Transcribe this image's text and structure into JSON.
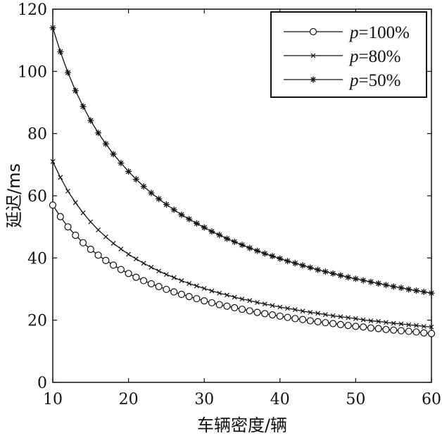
{
  "chart_data": {
    "type": "line",
    "xlabel": "车辆密度/辆",
    "ylabel": "延迟/ms",
    "xlim": [
      10,
      60
    ],
    "ylim": [
      0,
      120
    ],
    "xticks": [
      "10",
      "20",
      "30",
      "40",
      "50",
      "60"
    ],
    "yticks": [
      "0",
      "20",
      "40",
      "60",
      "80",
      "100",
      "120"
    ],
    "grid": false,
    "legend": "top-right",
    "x": [
      10,
      11,
      12,
      13,
      14,
      15,
      16,
      17,
      18,
      19,
      20,
      21,
      22,
      23,
      24,
      25,
      26,
      27,
      28,
      29,
      30,
      31,
      32,
      33,
      34,
      35,
      36,
      37,
      38,
      39,
      40,
      41,
      42,
      43,
      44,
      45,
      46,
      47,
      48,
      49,
      50,
      51,
      52,
      53,
      54,
      55,
      56,
      57,
      58,
      59,
      60
    ],
    "series": [
      {
        "name": "p=100%",
        "marker": "circle",
        "values": [
          57.0,
          53.3,
          50.0,
          47.3,
          44.9,
          42.8,
          40.9,
          39.2,
          37.7,
          36.3,
          35.0,
          33.8,
          32.7,
          31.7,
          30.8,
          29.9,
          29.1,
          28.3,
          27.6,
          26.9,
          26.2,
          25.6,
          25.0,
          24.5,
          24.0,
          23.5,
          23.0,
          22.5,
          22.1,
          21.7,
          21.3,
          20.9,
          20.5,
          20.2,
          19.8,
          19.5,
          19.2,
          18.9,
          18.6,
          18.3,
          18.0,
          17.8,
          17.5,
          17.3,
          17.0,
          16.8,
          16.6,
          16.4,
          16.2,
          15.9,
          15.7
        ]
      },
      {
        "name": "p=80%",
        "marker": "x",
        "values": [
          71.0,
          65.9,
          61.5,
          57.8,
          54.5,
          51.6,
          49.0,
          46.8,
          44.7,
          42.9,
          41.2,
          39.7,
          38.3,
          37.0,
          35.8,
          34.7,
          33.7,
          32.7,
          31.8,
          31.0,
          30.2,
          29.4,
          28.7,
          28.1,
          27.4,
          26.8,
          26.3,
          25.7,
          25.2,
          24.7,
          24.2,
          23.8,
          23.4,
          22.9,
          22.5,
          22.2,
          21.8,
          21.4,
          21.1,
          20.8,
          20.5,
          20.1,
          19.8,
          19.6,
          19.3,
          19.0,
          18.8,
          18.5,
          18.3,
          18.0,
          17.8
        ]
      },
      {
        "name": "p=50%",
        "marker": "star",
        "values": [
          114.0,
          106.3,
          99.6,
          93.8,
          88.7,
          84.2,
          80.2,
          76.7,
          73.4,
          70.5,
          67.8,
          65.3,
          63.0,
          60.9,
          59.0,
          57.2,
          55.5,
          53.9,
          52.5,
          51.1,
          49.8,
          48.5,
          47.4,
          46.2,
          45.2,
          44.2,
          43.2,
          42.3,
          41.4,
          40.6,
          39.8,
          39.0,
          38.3,
          37.6,
          36.9,
          36.2,
          35.6,
          35.0,
          34.4,
          33.8,
          33.3,
          32.8,
          32.3,
          31.8,
          31.3,
          30.8,
          30.4,
          29.9,
          29.5,
          29.1,
          28.7
        ]
      }
    ]
  }
}
